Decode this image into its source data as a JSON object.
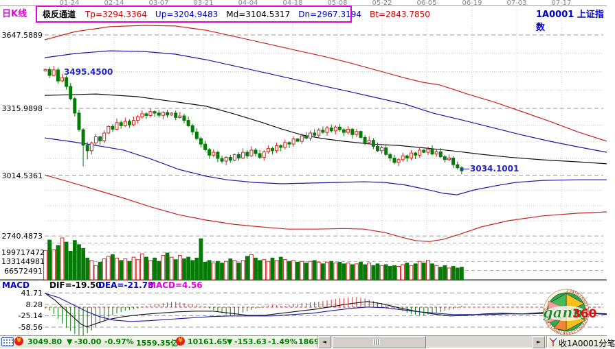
{
  "header": {
    "kline_label": "日K线",
    "channel_name": "极反通道",
    "channel": [
      {
        "label": "Tp=3294.3364"
      },
      {
        "label": "Up=3204.9483"
      },
      {
        "label": "Md=3104.5317"
      },
      {
        "label": "Dn=2967.3194"
      },
      {
        "label": "Bt=2843.7850"
      }
    ],
    "symbol_title": "1A0001  上证指数"
  },
  "axes": {
    "dates": [
      "01-24",
      "02-14",
      "03-07",
      "03-21",
      "04-04",
      "04-18",
      "05-08",
      "05-22",
      "06-05",
      "06-19",
      "07-03",
      "07-17"
    ],
    "price_labels": [
      "3647.5889",
      "3315.9898",
      "3014.5361",
      "2740.4873"
    ],
    "volume_labels": [
      "199717472",
      "133144981",
      "66572491"
    ],
    "macd_labels": [
      "41.71",
      "8.28",
      "-25.14",
      "-58.56"
    ]
  },
  "indicator": {
    "name": "MACD",
    "dif": "DIF=-19.50",
    "dea": "DEA=-21.78",
    "macd": "MACD=4.56"
  },
  "annotations": {
    "peak": "3495.4500",
    "last": "3034.1001"
  },
  "status": {
    "arrow": "▼",
    "sh_price": "3049.80",
    "sh_change": "-30.00",
    "sh_pct": "-0.97%",
    "sh_amount": "1559.35亿",
    "sz_price": "10161.65",
    "sz_change": "-153.63",
    "sz_pct": "-1.49%",
    "sz_amount": "1869.",
    "coin_glyph": "¥",
    "right_label": "收1A0001分笔"
  },
  "logo": {
    "green": "gann",
    "red": "360",
    "rim_digits": "2345678901234567890123456789012345678"
  },
  "colors": {
    "magenta": "#e000e0",
    "blue": "#0000cc",
    "red": "#cc0000",
    "candle_up": "#cc2222",
    "candle_down": "#067a06",
    "status_green": "#008000"
  },
  "chart_data": {
    "type": "candlestick",
    "panes": [
      "price",
      "volume",
      "macd"
    ],
    "title": "1A0001 上证指数 日K线 极反通道",
    "price_axis_values": [
      3647.5889,
      3315.9898,
      3014.5361,
      2740.4873
    ],
    "volume_axis_values": [
      199717472,
      133144981,
      66572491
    ],
    "volume_grid_values": [
      266289962,
      199717472,
      133144981,
      66572491
    ],
    "macd_axis_values": [
      41.71,
      8.28,
      -25.14,
      -58.56
    ],
    "first_open": 3486,
    "closes": [
      3492,
      3465,
      3490,
      3440,
      3455,
      3415,
      3360,
      3295,
      3220,
      3150,
      3125,
      3160,
      3188,
      3170,
      3205,
      3235,
      3222,
      3252,
      3238,
      3258,
      3242,
      3262,
      3278,
      3292,
      3284,
      3302,
      3295,
      3285,
      3298,
      3286,
      3295,
      3275,
      3282,
      3262,
      3238,
      3210,
      3180,
      3155,
      3130,
      3105,
      3118,
      3090,
      3078,
      3095,
      3082,
      3108,
      3092,
      3118,
      3102,
      3128,
      3112,
      3095,
      3120,
      3135,
      3125,
      3148,
      3140,
      3162,
      3155,
      3178,
      3168,
      3192,
      3182,
      3205,
      3195,
      3218,
      3208,
      3228,
      3215,
      3232,
      3220,
      3208,
      3222,
      3198,
      3212,
      3185,
      3162,
      3172,
      3145,
      3125,
      3138,
      3108,
      3092,
      3072,
      3085,
      3102,
      3092,
      3115,
      3105,
      3128,
      3118,
      3132,
      3110,
      3120,
      3098,
      3085,
      3092,
      3062,
      3048,
      3034.1
    ],
    "volumes_rel": [
      0.7,
      0.95,
      0.72,
      0.82,
      1.0,
      0.9,
      0.68,
      0.94,
      0.84,
      0.75,
      0.52,
      0.46,
      0.34,
      0.42,
      0.5,
      0.56,
      0.6,
      0.52,
      0.46,
      0.5,
      0.44,
      0.54,
      0.48,
      0.62,
      0.54,
      0.46,
      0.52,
      0.44,
      0.58,
      0.64,
      0.54,
      0.48,
      0.58,
      0.5,
      0.54,
      0.46,
      0.52,
      0.98,
      0.42,
      0.46,
      0.4,
      0.44,
      0.4,
      0.44,
      0.5,
      0.46,
      0.4,
      0.46,
      0.56,
      0.6,
      0.52,
      0.46,
      0.48,
      0.44,
      0.52,
      0.46,
      0.54,
      0.48,
      0.44,
      0.46,
      0.42,
      0.44,
      0.4,
      0.44,
      0.46,
      0.42,
      0.38,
      0.42,
      0.44,
      0.4,
      0.42,
      0.38,
      0.4,
      0.36,
      0.38,
      0.42,
      0.36,
      0.4,
      0.34,
      0.38,
      0.34,
      0.36,
      0.32,
      0.34,
      0.32,
      0.36,
      0.4,
      0.34,
      0.38,
      0.44,
      0.4,
      0.46,
      0.38,
      0.34,
      0.3,
      0.34,
      0.28,
      0.32,
      0.28,
      0.3
    ],
    "macd_hist": [
      -4,
      -10,
      -20,
      -34,
      -48,
      -60,
      -70,
      -79,
      -85,
      -83,
      -77,
      -68,
      -58,
      -48,
      -38,
      -30,
      -24,
      -18,
      -14,
      -10,
      -8,
      -6,
      -4,
      2,
      4,
      6,
      8,
      10,
      12,
      14,
      16,
      16,
      14,
      12,
      10,
      8,
      6,
      4,
      2,
      -4,
      -8,
      -14,
      -18,
      -22,
      -26,
      -24,
      -20,
      -16,
      -12,
      -8,
      -4,
      -2,
      2,
      4,
      6,
      6,
      4,
      4,
      6,
      8,
      10,
      12,
      12,
      14,
      16,
      16,
      18,
      20,
      22,
      24,
      26,
      26,
      28,
      30,
      30,
      28,
      26,
      22,
      18,
      14,
      10,
      6,
      2,
      -4,
      -8,
      -12,
      -16,
      -20,
      -22,
      -24,
      -24,
      -22,
      -20,
      -16,
      -14,
      -10,
      -8,
      -6,
      -2,
      4.56
    ],
    "dif": [
      [
        65,
        41.7
      ],
      [
        80,
        20.5
      ],
      [
        95,
        -7.7
      ],
      [
        108,
        -31.8
      ],
      [
        118,
        -49.9
      ],
      [
        126,
        -58
      ],
      [
        140,
        -47.9
      ],
      [
        158,
        -35.8
      ],
      [
        180,
        -27.8
      ],
      [
        205,
        -21.7
      ],
      [
        230,
        -17.7
      ],
      [
        258,
        -13.7
      ],
      [
        285,
        -11.7
      ],
      [
        310,
        -11.7
      ],
      [
        335,
        -17.7
      ],
      [
        360,
        -23.8
      ],
      [
        385,
        -23.8
      ],
      [
        410,
        -17.7
      ],
      [
        435,
        -11.7
      ],
      [
        460,
        -5.6
      ],
      [
        485,
        2.4
      ],
      [
        510,
        10.5
      ],
      [
        535,
        16.5
      ],
      [
        555,
        10.5
      ],
      [
        580,
        -1.6
      ],
      [
        605,
        -11.7
      ],
      [
        630,
        -19.7
      ],
      [
        655,
        -25.8
      ],
      [
        680,
        -23.8
      ],
      [
        705,
        -19.7
      ],
      [
        730,
        -17.7
      ],
      [
        760,
        -19.7
      ],
      [
        790,
        -15.7
      ],
      [
        820,
        -17.7
      ],
      [
        850,
        -16
      ],
      [
        883,
        -19.5
      ]
    ],
    "dea": [
      [
        65,
        40.7
      ],
      [
        85,
        28.6
      ],
      [
        105,
        8.5
      ],
      [
        125,
        -11.7
      ],
      [
        145,
        -27.8
      ],
      [
        165,
        -37.9
      ],
      [
        190,
        -41.9
      ],
      [
        215,
        -39.9
      ],
      [
        245,
        -35.8
      ],
      [
        275,
        -31.8
      ],
      [
        305,
        -27.8
      ],
      [
        335,
        -25.8
      ],
      [
        365,
        -25.8
      ],
      [
        395,
        -25.8
      ],
      [
        425,
        -21.7
      ],
      [
        455,
        -17.7
      ],
      [
        485,
        -9.7
      ],
      [
        510,
        -3.6
      ],
      [
        535,
        0.4
      ],
      [
        560,
        -1.6
      ],
      [
        585,
        -7.7
      ],
      [
        610,
        -13.7
      ],
      [
        635,
        -17.7
      ],
      [
        660,
        -21.7
      ],
      [
        685,
        -21.7
      ],
      [
        710,
        -21.7
      ],
      [
        740,
        -19.7
      ],
      [
        770,
        -19.7
      ],
      [
        800,
        -17.7
      ],
      [
        830,
        -17.7
      ],
      [
        860,
        -18
      ],
      [
        883,
        -21.8
      ]
    ],
    "channel_lines": {
      "tp": [
        [
          65,
          3626
        ],
        [
          110,
          3663
        ],
        [
          160,
          3685
        ],
        [
          210,
          3691
        ],
        [
          255,
          3688
        ],
        [
          300,
          3669
        ],
        [
          345,
          3638
        ],
        [
          390,
          3607
        ],
        [
          430,
          3579
        ],
        [
          470,
          3552
        ],
        [
          510,
          3521
        ],
        [
          550,
          3487
        ],
        [
          590,
          3453
        ],
        [
          615,
          3434
        ],
        [
          640,
          3422
        ],
        [
          665,
          3397
        ],
        [
          680,
          3381
        ],
        [
          720,
          3344
        ],
        [
          760,
          3301
        ],
        [
          800,
          3258
        ],
        [
          840,
          3211
        ],
        [
          883,
          3168
        ]
      ],
      "up": [
        [
          65,
          3545
        ],
        [
          110,
          3564
        ],
        [
          160,
          3576
        ],
        [
          210,
          3573
        ],
        [
          255,
          3561
        ],
        [
          300,
          3536
        ],
        [
          345,
          3505
        ],
        [
          390,
          3474
        ],
        [
          430,
          3446
        ],
        [
          470,
          3418
        ],
        [
          510,
          3391
        ],
        [
          550,
          3363
        ],
        [
          590,
          3335
        ],
        [
          630,
          3295
        ],
        [
          672,
          3264
        ],
        [
          680,
          3258
        ],
        [
          720,
          3227
        ],
        [
          760,
          3196
        ],
        [
          800,
          3168
        ],
        [
          840,
          3143
        ],
        [
          883,
          3118
        ]
      ],
      "md": [
        [
          65,
          3375
        ],
        [
          140,
          3381
        ],
        [
          200,
          3369
        ],
        [
          260,
          3344
        ],
        [
          300,
          3326
        ],
        [
          340,
          3292
        ],
        [
          380,
          3254
        ],
        [
          410,
          3223
        ],
        [
          440,
          3196
        ],
        [
          470,
          3180
        ],
        [
          500,
          3168
        ],
        [
          540,
          3155
        ],
        [
          580,
          3149
        ],
        [
          620,
          3137
        ],
        [
          660,
          3124
        ],
        [
          700,
          3109
        ],
        [
          740,
          3096
        ],
        [
          790,
          3084
        ],
        [
          840,
          3075
        ],
        [
          883,
          3066
        ]
      ],
      "dn": [
        [
          65,
          3183
        ],
        [
          100,
          3168
        ],
        [
          140,
          3149
        ],
        [
          180,
          3128
        ],
        [
          220,
          3087
        ],
        [
          260,
          3041
        ],
        [
          300,
          3010
        ],
        [
          330,
          2994
        ],
        [
          370,
          2982
        ],
        [
          410,
          2976
        ],
        [
          450,
          2979
        ],
        [
          490,
          2982
        ],
        [
          530,
          2985
        ],
        [
          560,
          2982
        ],
        [
          590,
          2970
        ],
        [
          620,
          2951
        ],
        [
          645,
          2933
        ],
        [
          665,
          2926
        ],
        [
          690,
          2948
        ],
        [
          720,
          2966
        ],
        [
          750,
          2982
        ],
        [
          790,
          2991
        ],
        [
          840,
          2994
        ],
        [
          883,
          2994
        ]
      ],
      "bt": [
        [
          65,
          3016
        ],
        [
          100,
          2985
        ],
        [
          140,
          2948
        ],
        [
          180,
          2911
        ],
        [
          220,
          2871
        ],
        [
          260,
          2836
        ],
        [
          300,
          2812
        ],
        [
          340,
          2793
        ],
        [
          380,
          2781
        ],
        [
          420,
          2771
        ],
        [
          460,
          2771
        ],
        [
          500,
          2774
        ],
        [
          530,
          2771
        ],
        [
          560,
          2756
        ],
        [
          585,
          2734
        ],
        [
          605,
          2719
        ],
        [
          625,
          2715
        ],
        [
          645,
          2725
        ],
        [
          670,
          2749
        ],
        [
          700,
          2781
        ],
        [
          740,
          2809
        ],
        [
          790,
          2831
        ],
        [
          840,
          2843
        ],
        [
          883,
          2849
        ]
      ]
    }
  }
}
